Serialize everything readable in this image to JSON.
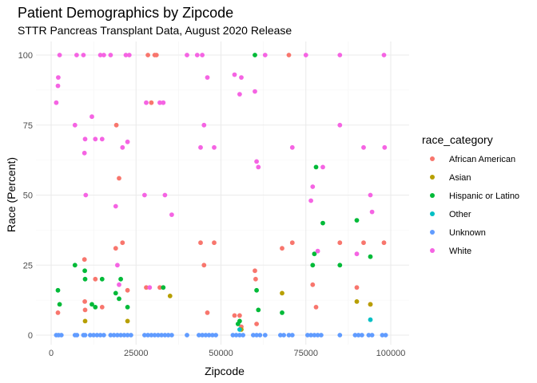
{
  "chart_data": {
    "type": "scatter",
    "title": "Patient Demographics by Zipcode",
    "subtitle": "STTR Pancreas Transplant Data, August 2020 Release",
    "xlabel": "Zipcode",
    "ylabel": "Race (Percent)",
    "xlim": [
      0,
      100000
    ],
    "ylim": [
      0,
      100
    ],
    "x_ticks": [
      0,
      25000,
      50000,
      75000,
      100000
    ],
    "x_tick_labels": [
      "0",
      "25000",
      "50000",
      "75000",
      "100000"
    ],
    "y_ticks": [
      0,
      25,
      50,
      75,
      100
    ],
    "y_tick_labels": [
      "0",
      "25",
      "50",
      "75",
      "100"
    ],
    "grid": true,
    "legend": {
      "title": "race_category",
      "placement": "right"
    },
    "series": [
      {
        "name": "African American",
        "color": "#F8766D",
        "points": [
          [
            2000,
            8
          ],
          [
            9800,
            27
          ],
          [
            9900,
            12
          ],
          [
            10000,
            9
          ],
          [
            13000,
            20
          ],
          [
            15000,
            10
          ],
          [
            19000,
            31
          ],
          [
            19200,
            75
          ],
          [
            20000,
            56
          ],
          [
            21000,
            33
          ],
          [
            22500,
            16
          ],
          [
            28000,
            17
          ],
          [
            28500,
            100
          ],
          [
            29500,
            83
          ],
          [
            30500,
            100
          ],
          [
            31000,
            100
          ],
          [
            32000,
            17
          ],
          [
            44000,
            33
          ],
          [
            45000,
            25
          ],
          [
            46000,
            8
          ],
          [
            48000,
            33
          ],
          [
            54000,
            7
          ],
          [
            55500,
            7
          ],
          [
            56000,
            3
          ],
          [
            60000,
            23
          ],
          [
            60200,
            20
          ],
          [
            60500,
            4
          ],
          [
            68000,
            31
          ],
          [
            70000,
            100
          ],
          [
            71000,
            33
          ],
          [
            77000,
            18
          ],
          [
            78000,
            10
          ],
          [
            85000,
            33
          ],
          [
            90000,
            17
          ],
          [
            92000,
            33
          ],
          [
            94000,
            11
          ],
          [
            98000,
            33
          ]
        ]
      },
      {
        "name": "Asian",
        "color": "#B79F00",
        "points": [
          [
            10000,
            5
          ],
          [
            22500,
            5
          ],
          [
            35000,
            14
          ],
          [
            56000,
            2
          ],
          [
            68000,
            15
          ],
          [
            90000,
            12
          ],
          [
            94000,
            11
          ]
        ]
      },
      {
        "name": "Hispanic or Latino",
        "color": "#00BA38",
        "points": [
          [
            2000,
            16
          ],
          [
            2500,
            11
          ],
          [
            7000,
            25
          ],
          [
            9900,
            23
          ],
          [
            10000,
            20
          ],
          [
            12000,
            11
          ],
          [
            13000,
            10
          ],
          [
            15000,
            20
          ],
          [
            19000,
            15
          ],
          [
            20000,
            13
          ],
          [
            20500,
            20
          ],
          [
            22500,
            10
          ],
          [
            33000,
            17
          ],
          [
            55000,
            4
          ],
          [
            55500,
            5
          ],
          [
            60000,
            100
          ],
          [
            60500,
            16
          ],
          [
            61000,
            9
          ],
          [
            68000,
            8
          ],
          [
            77000,
            25
          ],
          [
            77500,
            29
          ],
          [
            78000,
            60
          ],
          [
            80000,
            40
          ],
          [
            85000,
            25
          ],
          [
            90000,
            41
          ],
          [
            94000,
            28
          ]
        ]
      },
      {
        "name": "Other",
        "color": "#00BFC4",
        "points": [
          [
            55500,
            2
          ],
          [
            94000,
            5.5
          ]
        ]
      },
      {
        "name": "Unknown",
        "color": "#619CFF",
        "points": [
          [
            1500,
            0
          ],
          [
            2200,
            0
          ],
          [
            3000,
            0
          ],
          [
            7000,
            0
          ],
          [
            7600,
            0
          ],
          [
            9500,
            0
          ],
          [
            10000,
            0
          ],
          [
            11500,
            0
          ],
          [
            12500,
            0
          ],
          [
            13500,
            0
          ],
          [
            14500,
            0
          ],
          [
            15500,
            0
          ],
          [
            17500,
            0
          ],
          [
            18500,
            0
          ],
          [
            19500,
            0
          ],
          [
            20500,
            0
          ],
          [
            21500,
            0
          ],
          [
            22500,
            0
          ],
          [
            23500,
            0
          ],
          [
            27500,
            0
          ],
          [
            28500,
            0
          ],
          [
            29500,
            0
          ],
          [
            30500,
            0
          ],
          [
            31500,
            0
          ],
          [
            32500,
            0
          ],
          [
            33500,
            0
          ],
          [
            34500,
            0
          ],
          [
            35500,
            0
          ],
          [
            40000,
            0
          ],
          [
            43500,
            0
          ],
          [
            44500,
            0
          ],
          [
            45500,
            0
          ],
          [
            46500,
            0
          ],
          [
            47500,
            0
          ],
          [
            48500,
            0
          ],
          [
            53500,
            0
          ],
          [
            54500,
            0
          ],
          [
            55500,
            0
          ],
          [
            56500,
            0
          ],
          [
            59500,
            0
          ],
          [
            60500,
            0
          ],
          [
            61500,
            0
          ],
          [
            63000,
            0
          ],
          [
            67500,
            0
          ],
          [
            68500,
            0
          ],
          [
            70000,
            0
          ],
          [
            71000,
            0
          ],
          [
            75500,
            0
          ],
          [
            76500,
            0
          ],
          [
            77500,
            0
          ],
          [
            78500,
            0
          ],
          [
            79500,
            0
          ],
          [
            85000,
            0
          ],
          [
            89500,
            0
          ],
          [
            90500,
            0
          ],
          [
            91500,
            0
          ],
          [
            93500,
            0
          ],
          [
            94500,
            0
          ],
          [
            97500,
            0
          ],
          [
            98500,
            0
          ]
        ]
      },
      {
        "name": "White",
        "color": "#F564E3",
        "points": [
          [
            1500,
            83
          ],
          [
            2000,
            89
          ],
          [
            2100,
            92
          ],
          [
            2500,
            100
          ],
          [
            7000,
            75
          ],
          [
            7500,
            100
          ],
          [
            9500,
            100
          ],
          [
            9800,
            65
          ],
          [
            10000,
            70
          ],
          [
            10200,
            50
          ],
          [
            12000,
            78
          ],
          [
            13000,
            70
          ],
          [
            14500,
            100
          ],
          [
            15000,
            70
          ],
          [
            15500,
            100
          ],
          [
            17500,
            100
          ],
          [
            19000,
            46
          ],
          [
            19500,
            25
          ],
          [
            20000,
            18
          ],
          [
            21000,
            67
          ],
          [
            22000,
            100
          ],
          [
            22500,
            69
          ],
          [
            23000,
            100
          ],
          [
            27500,
            50
          ],
          [
            28000,
            83
          ],
          [
            29000,
            17
          ],
          [
            32000,
            83
          ],
          [
            33000,
            83
          ],
          [
            33500,
            50
          ],
          [
            35500,
            43
          ],
          [
            40000,
            100
          ],
          [
            43000,
            100
          ],
          [
            44000,
            67
          ],
          [
            44500,
            100
          ],
          [
            45000,
            75
          ],
          [
            46000,
            92
          ],
          [
            48000,
            67
          ],
          [
            54000,
            93
          ],
          [
            55500,
            86
          ],
          [
            56000,
            92
          ],
          [
            60000,
            87
          ],
          [
            60500,
            62
          ],
          [
            61000,
            60
          ],
          [
            63000,
            100
          ],
          [
            71000,
            67
          ],
          [
            75000,
            100
          ],
          [
            76500,
            48
          ],
          [
            77000,
            53
          ],
          [
            78500,
            30
          ],
          [
            80000,
            60
          ],
          [
            85000,
            100
          ],
          [
            85000,
            75
          ],
          [
            90000,
            29
          ],
          [
            92000,
            67
          ],
          [
            94000,
            50
          ],
          [
            94500,
            44
          ],
          [
            98000,
            100
          ],
          [
            98200,
            67
          ]
        ]
      }
    ]
  }
}
